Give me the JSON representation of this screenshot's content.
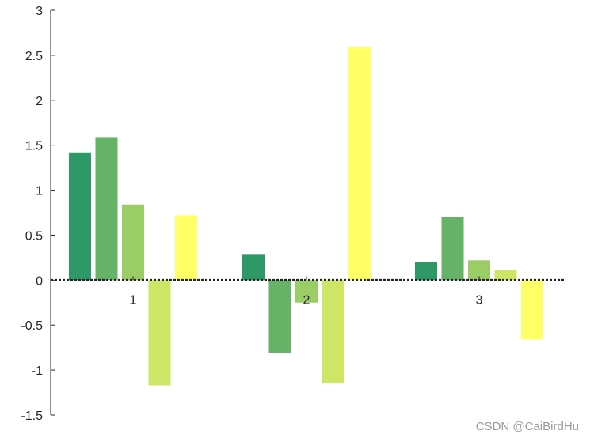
{
  "chart_data": {
    "type": "bar",
    "categories": [
      "1",
      "2",
      "3"
    ],
    "series": [
      {
        "color": "#2E9966",
        "values": [
          1.42,
          0.29,
          0.2
        ]
      },
      {
        "color": "#66B266",
        "values": [
          1.59,
          -0.81,
          0.7
        ]
      },
      {
        "color": "#9ACD66",
        "values": [
          0.84,
          -0.25,
          0.22
        ]
      },
      {
        "color": "#CDE666",
        "values": [
          -1.17,
          -1.15,
          0.11
        ]
      },
      {
        "color": "#FFFF66",
        "values": [
          0.72,
          2.59,
          -0.66
        ]
      }
    ],
    "yticks": [
      "3",
      "2.5",
      "2",
      "1.5",
      "1",
      "0.5",
      "0",
      "-0.5",
      "-1",
      "-1.5"
    ],
    "ytick_values": [
      3,
      2.5,
      2,
      1.5,
      1,
      0.5,
      0,
      -0.5,
      -1,
      -1.5
    ],
    "ylim": [
      -1.5,
      3
    ],
    "baseline": 0,
    "baseline_style": "dotted",
    "grid": false,
    "title": "",
    "xlabel": "",
    "ylabel": ""
  },
  "watermark": "CSDN @CaiBirdHu"
}
